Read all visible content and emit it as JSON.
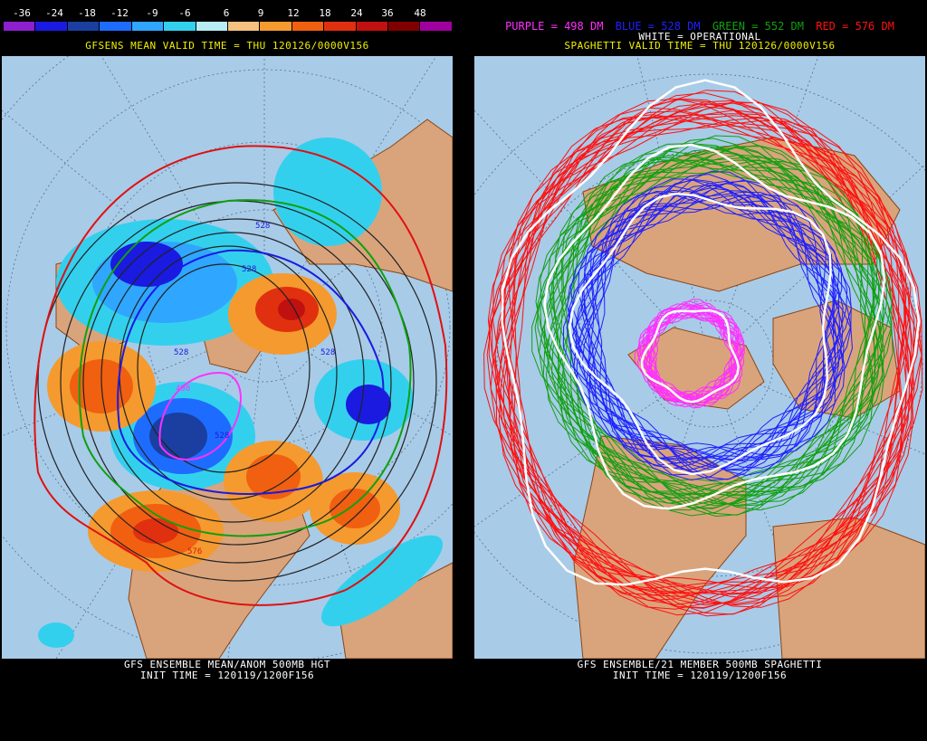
{
  "left_panel": {
    "colorbar": {
      "labels": [
        "-36",
        "-24",
        "-18",
        "-12",
        "-9",
        "-6",
        "6",
        "9",
        "12",
        "18",
        "24",
        "36",
        "48"
      ],
      "colors": [
        "#8c1fd0",
        "#1a1ae0",
        "#1a3fa0",
        "#1e6cff",
        "#2fa6ff",
        "#33d0ee",
        "#b8ecf4",
        "#f5c080",
        "#f59a2e",
        "#f06010",
        "#e03010",
        "#c01010",
        "#800000",
        "#a000a0"
      ]
    },
    "top_title": "GFSENS MEAN VALID TIME = THU 120126/0000V156",
    "bottom_title_line1": "GFS ENSEMBLE MEAN/ANOM 500MB HGT",
    "bottom_title_line2": "INIT TIME = 120119/1200F156",
    "contour_labels": [
      "528",
      "528",
      "528",
      "498",
      "528",
      "528",
      "576"
    ]
  },
  "right_panel": {
    "legend": {
      "purple": "PURPLE = 498 DM",
      "blue": "BLUE = 528 DM",
      "green": "GREEN = 552 DM",
      "red": "RED = 576 DM",
      "purple_color": "#ff30ff",
      "blue_color": "#2020ff",
      "green_color": "#10a010",
      "red_color": "#ff1010"
    },
    "operational_label": "WHITE = OPERATIONAL",
    "top_title": "SPAGHETTI VALID TIME = THU 120126/0000V156",
    "bottom_title_line1": "GFS ENSEMBLE/21 MEMBER 500MB SPAGHETTI",
    "bottom_title_line2": "INIT TIME = 120119/1200F156"
  },
  "colors": {
    "ocean": "#a8cbe8",
    "land": "#d9a47c",
    "border": "#8b4513"
  }
}
